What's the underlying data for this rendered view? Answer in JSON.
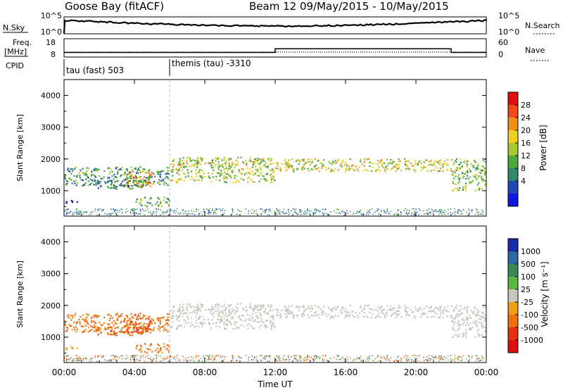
{
  "header": {
    "radar_title": "Goose Bay (fitACF)",
    "beam_title": "Beam 12 09/May/2015 - 10/May/2015"
  },
  "top_panels": {
    "nsky_label": "N.Sky",
    "nsky_ticks": [
      "10^5",
      "10^0"
    ],
    "nsearch_label": "N.Search",
    "nsearch_ticks": [
      "10^5",
      "10^0"
    ],
    "freq_label_1": "Freq.",
    "freq_label_2": "[MHz]",
    "freq_ticks": [
      "18",
      "8"
    ],
    "nave_label": "Nave",
    "nave_ticks": [
      "60",
      "0"
    ],
    "cpid_label": "CPID",
    "cpid_segments": [
      "tau (fast) 503",
      "themis (tau) -3310"
    ]
  },
  "x_axis": {
    "ticks": [
      "00:00",
      "04:00",
      "08:00",
      "12:00",
      "16:00",
      "20:00",
      "00:00"
    ],
    "label": "Time UT"
  },
  "power_panel": {
    "ylabel": "Slant Range [km]",
    "yticks": [
      "4000",
      "3000",
      "2000",
      "1000"
    ],
    "cbar_label": "Power [dB]",
    "cbar_ticks": [
      "28",
      "24",
      "20",
      "16",
      "12",
      "8",
      "4"
    ]
  },
  "velocity_panel": {
    "ylabel": "Slant Range [km]",
    "yticks": [
      "4000",
      "3000",
      "2000",
      "1000"
    ],
    "cbar_label": "Velocity [m s⁻¹]",
    "cbar_ticks": [
      "1000",
      "500",
      "100",
      "25",
      "-25",
      "-100",
      "-500",
      "-1000"
    ]
  },
  "chart_data": {
    "type": "heatmap",
    "xlabel": "Time UT",
    "ylabel": "Slant Range [km]",
    "x_range_hours": [
      0,
      24
    ],
    "y_range_km": [
      200,
      4500
    ],
    "cpid_switch_hour": 6,
    "frequency_mhz": [
      {
        "from_hour": 0,
        "to_hour": 12,
        "value": 10.5
      },
      {
        "from_hour": 12,
        "to_hour": 22,
        "value": 12.5
      },
      {
        "from_hour": 22,
        "to_hour": 24,
        "value": 10.5
      }
    ],
    "power_colorscale": {
      "ticks_db": [
        4,
        8,
        12,
        16,
        20,
        24,
        28
      ],
      "colors": [
        "#1018e0",
        "#2048b8",
        "#2e8a6a",
        "#4aa83c",
        "#a8c830",
        "#f0d020",
        "#f09018",
        "#f04818",
        "#e01010"
      ]
    },
    "velocity_colorscale": {
      "ticks_ms": [
        1000,
        500,
        100,
        25,
        -25,
        -100,
        -500,
        -1000
      ],
      "colors": [
        "#1a2aa8",
        "#2a6aa0",
        "#3a8a58",
        "#5ab840",
        "#c8c8c0",
        "#f0a018",
        "#f07010",
        "#e83010",
        "#e01010"
      ]
    },
    "echo_regions": [
      {
        "from_hour": 0.0,
        "to_hour": 6.0,
        "range_km": [
          1150,
          1750
        ],
        "power_db": 12,
        "velocity_ms": -200
      },
      {
        "from_hour": 0.0,
        "to_hour": 1.0,
        "range_km": [
          600,
          700
        ],
        "power_db": 8,
        "velocity_ms": -60
      },
      {
        "from_hour": 3.3,
        "to_hour": 5.0,
        "range_km": [
          1100,
          1600
        ],
        "power_db": 26,
        "velocity_ms": -450
      },
      {
        "from_hour": 1.5,
        "to_hour": 4.5,
        "range_km": [
          1050,
          1350
        ],
        "power_db": 10,
        "velocity_ms": -350
      },
      {
        "from_hour": 4.0,
        "to_hour": 6.0,
        "range_km": [
          500,
          800
        ],
        "power_db": 14,
        "velocity_ms": -180
      },
      {
        "from_hour": 6.0,
        "to_hour": 12.0,
        "range_km": [
          1250,
          2050
        ],
        "power_db": 18,
        "velocity_ms": 0
      },
      {
        "from_hour": 12.0,
        "to_hour": 22.0,
        "range_km": [
          1600,
          2000
        ],
        "power_db": 20,
        "velocity_ms": 0
      },
      {
        "from_hour": 22.0,
        "to_hour": 24.0,
        "range_km": [
          1000,
          2000
        ],
        "power_db": 16,
        "velocity_ms": 0
      }
    ]
  }
}
